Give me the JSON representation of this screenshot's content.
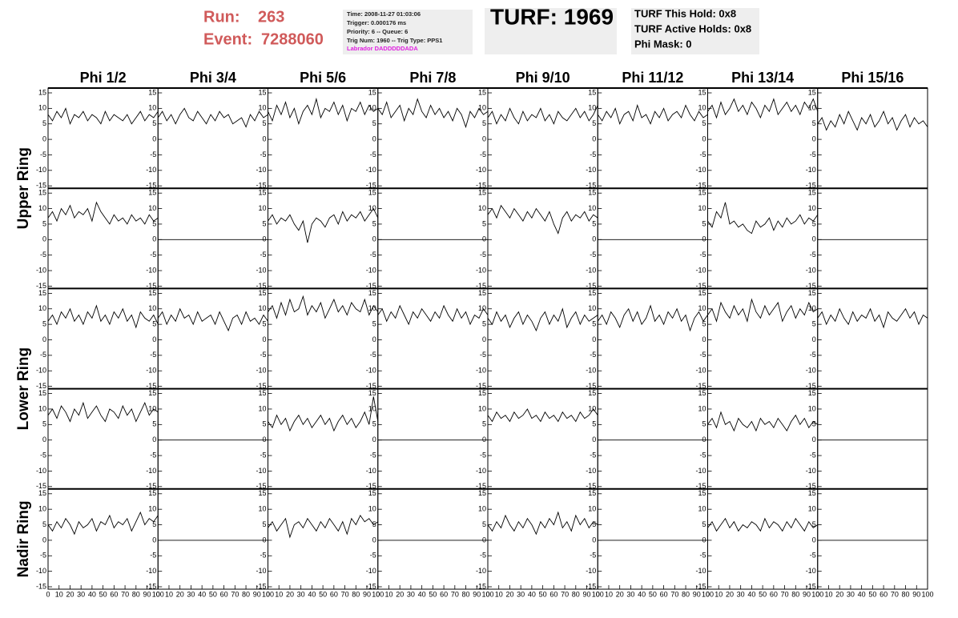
{
  "header": {
    "run_label": "Run:",
    "run": "263",
    "event_label": "Event:",
    "event": "7288060",
    "info": [
      "Time: 2008-11-27 01:03:06",
      "Trigger: 0.000176 ms",
      "Priority: 6 -- Queue: 6",
      "Trig Num: 1960 -- Trig Type: PPS1",
      "Labrador DADDDDDADA"
    ],
    "turf": "TURF: 1969",
    "turf_info": [
      "TURF This Hold: 0x8",
      "TURF Active Holds: 0x8",
      "Phi Mask: 0"
    ]
  },
  "chart_data": {
    "type": "line",
    "color": "#000000",
    "columns": [
      "Phi 1/2",
      "Phi 3/4",
      "Phi 5/6",
      "Phi 7/8",
      "Phi 9/10",
      "Phi 11/12",
      "Phi 13/14",
      "Phi 15/16"
    ],
    "rows": [
      "Upper Ring",
      "Lower Ring",
      "Nadir Ring"
    ],
    "xlim": [
      0,
      100
    ],
    "xticks": [
      0,
      10,
      20,
      30,
      40,
      50,
      60,
      70,
      80,
      90,
      100
    ],
    "ylim": [
      -15,
      15
    ],
    "yticks": [
      -15,
      -10,
      -5,
      0,
      5,
      10,
      15
    ],
    "x": [
      0,
      4,
      8,
      12,
      16,
      20,
      24,
      28,
      32,
      36,
      40,
      44,
      48,
      52,
      56,
      60,
      64,
      68,
      72,
      76,
      80,
      84,
      88,
      92,
      96,
      100
    ],
    "panels": [
      [
        {
          "values": [
            8,
            6,
            9,
            7,
            10,
            5,
            8,
            7,
            9,
            6,
            8,
            7,
            5,
            9,
            6,
            8,
            7,
            6,
            8,
            5,
            7,
            9,
            6,
            8,
            7,
            9
          ]
        },
        {
          "values": [
            7,
            9,
            6,
            8,
            5,
            8,
            10,
            7,
            6,
            9,
            7,
            5,
            8,
            6,
            9,
            7,
            8,
            5,
            6,
            7,
            4,
            8,
            6,
            9,
            7,
            8
          ]
        },
        {
          "values": [
            9,
            6,
            11,
            8,
            12,
            7,
            10,
            5,
            9,
            11,
            8,
            13,
            7,
            10,
            9,
            12,
            8,
            11,
            6,
            10,
            9,
            12,
            8,
            11,
            9,
            10
          ]
        },
        {
          "values": [
            10,
            8,
            12,
            7,
            9,
            11,
            6,
            10,
            8,
            13,
            9,
            7,
            11,
            8,
            10,
            7,
            9,
            6,
            10,
            8,
            4,
            9,
            7,
            10,
            8,
            9
          ]
        },
        {
          "values": [
            7,
            9,
            5,
            8,
            6,
            10,
            7,
            5,
            9,
            6,
            8,
            7,
            10,
            6,
            8,
            5,
            9,
            7,
            6,
            8,
            10,
            7,
            9,
            6,
            8,
            11
          ]
        },
        {
          "values": [
            8,
            6,
            9,
            7,
            10,
            5,
            8,
            9,
            6,
            11,
            7,
            8,
            5,
            9,
            7,
            10,
            6,
            8,
            9,
            7,
            11,
            8,
            6,
            9,
            7,
            8
          ]
        },
        {
          "values": [
            9,
            11,
            7,
            12,
            8,
            10,
            13,
            9,
            11,
            8,
            12,
            10,
            7,
            11,
            9,
            13,
            8,
            10,
            12,
            9,
            11,
            8,
            12,
            10,
            13,
            9
          ]
        },
        {
          "values": [
            5,
            7,
            3,
            6,
            4,
            8,
            5,
            9,
            6,
            3,
            7,
            5,
            8,
            4,
            6,
            9,
            5,
            7,
            3,
            6,
            8,
            4,
            7,
            5,
            6,
            4
          ]
        }
      ],
      [
        {
          "values": [
            7,
            9,
            6,
            10,
            8,
            11,
            7,
            9,
            8,
            10,
            6,
            12,
            9,
            7,
            5,
            8,
            6,
            7,
            5,
            8,
            6,
            7,
            5,
            8,
            6,
            7
          ]
        },
        {
          "values": [
            0,
            0,
            0,
            0,
            0,
            0,
            0,
            0,
            0,
            0,
            0,
            0,
            0,
            0,
            0,
            0,
            0,
            0,
            0,
            0,
            0,
            0,
            0,
            0,
            0,
            0
          ]
        },
        {
          "values": [
            6,
            8,
            5,
            7,
            6,
            8,
            5,
            3,
            6,
            -1,
            5,
            7,
            6,
            4,
            7,
            8,
            5,
            9,
            6,
            8,
            7,
            9,
            6,
            8,
            10,
            7
          ]
        },
        {
          "values": [
            0,
            0,
            0,
            0,
            0,
            0,
            0,
            0,
            0,
            0,
            0,
            0,
            0,
            0,
            0,
            0,
            0,
            0,
            0,
            0,
            0,
            0,
            0,
            0,
            0,
            0
          ]
        },
        {
          "values": [
            8,
            10,
            7,
            11,
            9,
            7,
            10,
            8,
            6,
            9,
            7,
            10,
            8,
            6,
            9,
            5,
            2,
            7,
            9,
            6,
            8,
            7,
            9,
            6,
            8,
            7
          ]
        },
        {
          "values": [
            0,
            0,
            0,
            0,
            0,
            0,
            0,
            0,
            0,
            0,
            0,
            0,
            0,
            0,
            0,
            0,
            0,
            0,
            0,
            0,
            0,
            0,
            0,
            0,
            0,
            0
          ]
        },
        {
          "values": [
            6,
            4,
            9,
            7,
            12,
            5,
            6,
            4,
            5,
            3,
            2,
            6,
            4,
            5,
            7,
            3,
            6,
            4,
            7,
            5,
            6,
            8,
            5,
            7,
            6,
            8
          ]
        },
        {
          "values": [
            0,
            0,
            0,
            0,
            0,
            0,
            0,
            0,
            0,
            0,
            0,
            0,
            0,
            0,
            0,
            0,
            0,
            0,
            0,
            0,
            0,
            0,
            0,
            0,
            0,
            0
          ]
        }
      ],
      [
        {
          "values": [
            6,
            8,
            5,
            9,
            7,
            10,
            6,
            8,
            5,
            9,
            7,
            11,
            6,
            8,
            5,
            9,
            7,
            10,
            6,
            8,
            4,
            9,
            7,
            6,
            8,
            5
          ]
        },
        {
          "values": [
            7,
            9,
            5,
            8,
            6,
            10,
            7,
            8,
            5,
            9,
            6,
            7,
            8,
            5,
            9,
            6,
            3,
            7,
            8,
            5,
            9,
            6,
            7,
            5,
            8,
            6
          ]
        },
        {
          "values": [
            9,
            11,
            7,
            12,
            8,
            13,
            9,
            10,
            14,
            8,
            11,
            9,
            12,
            7,
            10,
            13,
            9,
            11,
            8,
            12,
            10,
            9,
            13,
            8,
            11,
            9
          ]
        },
        {
          "values": [
            8,
            10,
            6,
            9,
            7,
            11,
            8,
            5,
            9,
            7,
            10,
            8,
            6,
            9,
            7,
            11,
            8,
            6,
            10,
            7,
            9,
            5,
            8,
            7,
            10,
            8
          ]
        },
        {
          "values": [
            7,
            5,
            9,
            6,
            8,
            4,
            7,
            9,
            5,
            8,
            6,
            3,
            7,
            9,
            5,
            8,
            6,
            10,
            4,
            7,
            9,
            5,
            8,
            6,
            7,
            8
          ]
        },
        {
          "values": [
            6,
            8,
            5,
            9,
            7,
            4,
            8,
            10,
            6,
            9,
            5,
            7,
            11,
            6,
            8,
            5,
            9,
            7,
            10,
            6,
            8,
            3,
            7,
            9,
            6,
            8
          ]
        },
        {
          "values": [
            8,
            10,
            6,
            12,
            9,
            7,
            11,
            8,
            10,
            6,
            13,
            9,
            7,
            11,
            8,
            10,
            12,
            6,
            9,
            11,
            7,
            10,
            8,
            12,
            9,
            10
          ]
        },
        {
          "values": [
            7,
            9,
            5,
            8,
            6,
            10,
            7,
            5,
            9,
            6,
            8,
            7,
            10,
            6,
            8,
            4,
            9,
            7,
            6,
            8,
            10,
            7,
            9,
            5,
            8,
            7
          ]
        }
      ],
      [
        {
          "values": [
            8,
            10,
            7,
            11,
            9,
            6,
            10,
            8,
            12,
            7,
            9,
            11,
            8,
            6,
            10,
            9,
            7,
            11,
            8,
            10,
            6,
            9,
            12,
            8,
            10,
            9
          ]
        },
        {
          "values": [
            0,
            0,
            0,
            0,
            0,
            0,
            0,
            0,
            0,
            0,
            0,
            0,
            0,
            0,
            0,
            0,
            0,
            0,
            0,
            0,
            0,
            0,
            0,
            0,
            0,
            0
          ]
        },
        {
          "values": [
            6,
            4,
            8,
            5,
            7,
            3,
            6,
            8,
            5,
            7,
            4,
            6,
            8,
            5,
            7,
            3,
            6,
            8,
            5,
            7,
            4,
            6,
            9,
            5,
            14,
            6
          ]
        },
        {
          "values": [
            0,
            0,
            0,
            0,
            0,
            0,
            0,
            0,
            0,
            0,
            0,
            0,
            0,
            0,
            0,
            0,
            0,
            0,
            0,
            0,
            0,
            0,
            0,
            0,
            0,
            0
          ]
        },
        {
          "values": [
            8,
            6,
            9,
            7,
            8,
            6,
            9,
            7,
            8,
            10,
            7,
            8,
            6,
            9,
            7,
            8,
            6,
            9,
            7,
            8,
            6,
            9,
            7,
            8,
            10,
            8
          ]
        },
        {
          "values": [
            0,
            0,
            0,
            0,
            0,
            0,
            0,
            0,
            0,
            0,
            0,
            0,
            0,
            0,
            0,
            0,
            0,
            0,
            0,
            0,
            0,
            0,
            0,
            0,
            0,
            0
          ]
        },
        {
          "values": [
            5,
            7,
            4,
            9,
            5,
            6,
            3,
            7,
            5,
            4,
            6,
            3,
            7,
            5,
            6,
            4,
            7,
            5,
            3,
            6,
            8,
            5,
            7,
            4,
            6,
            5
          ]
        },
        {
          "values": [
            0,
            0,
            0,
            0,
            0,
            0,
            0,
            0,
            0,
            0,
            0,
            0,
            0,
            0,
            0,
            0,
            0,
            0,
            0,
            0,
            0,
            0,
            0,
            0,
            0,
            0
          ]
        }
      ],
      [
        {
          "values": [
            5,
            3,
            6,
            4,
            7,
            5,
            2,
            6,
            4,
            5,
            7,
            3,
            6,
            5,
            8,
            4,
            6,
            5,
            7,
            3,
            6,
            9,
            5,
            7,
            6,
            8
          ]
        },
        {
          "values": [
            0,
            0,
            0,
            0,
            0,
            0,
            0,
            0,
            0,
            0,
            0,
            0,
            0,
            0,
            0,
            0,
            0,
            0,
            0,
            0,
            0,
            0,
            0,
            0,
            0,
            0
          ]
        },
        {
          "values": [
            4,
            6,
            3,
            5,
            7,
            1,
            5,
            6,
            4,
            7,
            5,
            3,
            6,
            4,
            7,
            5,
            3,
            6,
            2,
            7,
            5,
            8,
            6,
            7,
            5,
            6
          ]
        },
        {
          "values": [
            0,
            0,
            0,
            0,
            0,
            0,
            0,
            0,
            0,
            0,
            0,
            0,
            0,
            0,
            0,
            0,
            0,
            0,
            0,
            0,
            0,
            0,
            0,
            0,
            0,
            0
          ]
        },
        {
          "values": [
            5,
            3,
            6,
            4,
            8,
            5,
            3,
            6,
            4,
            7,
            5,
            2,
            6,
            4,
            7,
            5,
            9,
            4,
            6,
            3,
            8,
            5,
            7,
            4,
            6,
            5
          ]
        },
        {
          "values": [
            0,
            0,
            0,
            0,
            0,
            0,
            0,
            0,
            0,
            0,
            0,
            0,
            0,
            0,
            0,
            0,
            0,
            0,
            0,
            0,
            0,
            0,
            0,
            0,
            0,
            0
          ]
        },
        {
          "values": [
            4,
            6,
            3,
            5,
            7,
            4,
            6,
            3,
            5,
            4,
            6,
            5,
            3,
            7,
            4,
            6,
            5,
            3,
            6,
            4,
            7,
            5,
            3,
            6,
            4,
            5
          ]
        },
        {
          "values": [
            0,
            0,
            0,
            0,
            0,
            0,
            0,
            0,
            0,
            0,
            0,
            0,
            0,
            0,
            0,
            0,
            0,
            0,
            0,
            0,
            0,
            0,
            0,
            0,
            0,
            0
          ]
        }
      ]
    ]
  }
}
